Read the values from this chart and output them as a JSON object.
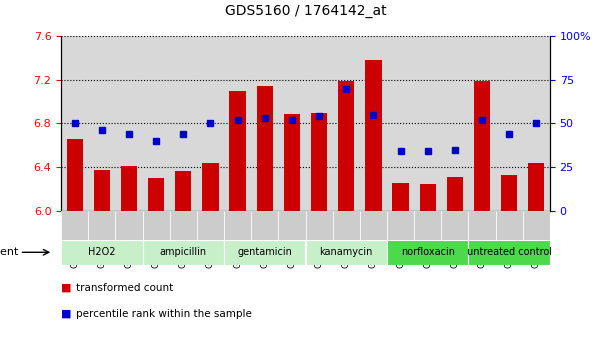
{
  "title": "GDS5160 / 1764142_at",
  "samples": [
    "GSM1356340",
    "GSM1356341",
    "GSM1356342",
    "GSM1356328",
    "GSM1356329",
    "GSM1356330",
    "GSM1356331",
    "GSM1356332",
    "GSM1356333",
    "GSM1356334",
    "GSM1356335",
    "GSM1356336",
    "GSM1356337",
    "GSM1356338",
    "GSM1356339",
    "GSM1356325",
    "GSM1356326",
    "GSM1356327"
  ],
  "bar_values": [
    6.66,
    6.37,
    6.41,
    6.3,
    6.36,
    6.44,
    7.1,
    7.14,
    6.89,
    6.9,
    7.19,
    7.38,
    6.25,
    6.24,
    6.31,
    7.19,
    6.33,
    6.44
  ],
  "dot_values": [
    50,
    46,
    44,
    40,
    44,
    50,
    52,
    53,
    52,
    54,
    70,
    55,
    34,
    34,
    35,
    52,
    44,
    50
  ],
  "groups": [
    {
      "label": "H2O2",
      "start": 0,
      "end": 2,
      "color": "#c8f0c8"
    },
    {
      "label": "ampicillin",
      "start": 3,
      "end": 5,
      "color": "#c8f0c8"
    },
    {
      "label": "gentamicin",
      "start": 6,
      "end": 8,
      "color": "#c8f0c8"
    },
    {
      "label": "kanamycin",
      "start": 9,
      "end": 11,
      "color": "#c8f0c8"
    },
    {
      "label": "norfloxacin",
      "start": 12,
      "end": 14,
      "color": "#4cd94c"
    },
    {
      "label": "untreated control",
      "start": 15,
      "end": 17,
      "color": "#4cd94c"
    }
  ],
  "ylim_left": [
    6.0,
    7.6
  ],
  "ylim_right": [
    0,
    100
  ],
  "yticks_left": [
    6.0,
    6.4,
    6.8,
    7.2,
    7.6
  ],
  "yticks_right": [
    0,
    25,
    50,
    75,
    100
  ],
  "bar_color": "#cc0000",
  "dot_color": "#0000cc",
  "bar_bottom": 6.0,
  "plot_bg": "#d8d8d8",
  "xtick_bg": "#c8c8c8",
  "legend_items": [
    "transformed count",
    "percentile rank within the sample"
  ]
}
